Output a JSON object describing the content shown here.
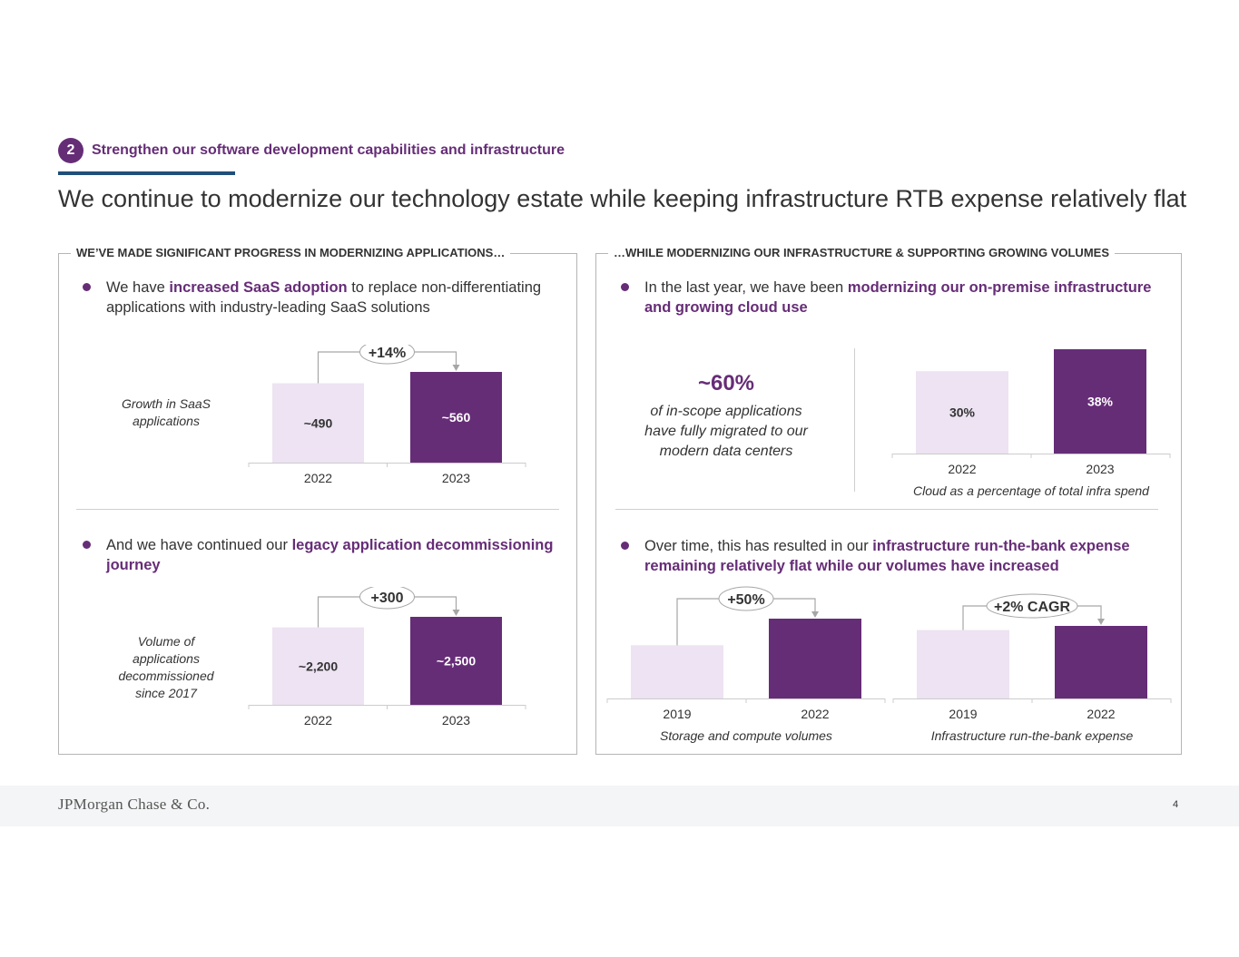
{
  "header": {
    "section_number": "2",
    "section_label": "Strengthen our software development capabilities and infrastructure",
    "title": "We continue to modernize our technology estate while keeping infrastructure RTB expense relatively flat"
  },
  "left_panel": {
    "heading": "WE’VE MADE SIGNIFICANT PROGRESS IN MODERNIZING APPLICATIONS…",
    "bullet1": {
      "pre": "We have ",
      "highlight": "increased SaaS adoption",
      "post": " to replace non-differentiating applications with industry-leading SaaS solutions"
    },
    "bullet2": {
      "pre": "And we have continued our ",
      "highlight": "legacy application decommissioning journey",
      "post": ""
    }
  },
  "right_panel": {
    "heading": "…WHILE MODERNIZING OUR INFRASTRUCTURE & SUPPORTING GROWING VOLUMES",
    "bullet1": {
      "pre": "In the last year, we have been ",
      "highlight": "modernizing our on-premise infrastructure and growing cloud use",
      "post": ""
    },
    "stat_value": "~60%",
    "stat_text": "of in-scope applications have fully migrated to our modern data centers",
    "bullet2": {
      "pre": "Over time, this has resulted in our ",
      "highlight": "infrastructure run-the-bank expense remaining relatively flat while our volumes have increased",
      "post": ""
    }
  },
  "colors": {
    "light": "#ede3f2",
    "dark": "#662d77",
    "text": "#333333"
  },
  "footer": {
    "logo": "JPMorgan Chase & Co.",
    "page": "4"
  },
  "chart_data": [
    {
      "id": "saas",
      "type": "bar",
      "side_label": "Growth in SaaS applications",
      "categories": [
        "2022",
        "2023"
      ],
      "values": [
        490,
        560
      ],
      "data_labels": [
        "~490",
        "~560"
      ],
      "change_label": "+14%",
      "ylim": [
        0,
        650
      ],
      "caption": ""
    },
    {
      "id": "decom",
      "type": "bar",
      "side_label": "Volume of applications decommissioned since 2017",
      "categories": [
        "2022",
        "2023"
      ],
      "values": [
        2200,
        2500
      ],
      "data_labels": [
        "~2,200",
        "~2,500"
      ],
      "change_label": "+300",
      "ylim": [
        0,
        2900
      ],
      "caption": ""
    },
    {
      "id": "cloud",
      "type": "bar",
      "side_label": "",
      "categories": [
        "2022",
        "2023"
      ],
      "values": [
        30,
        38
      ],
      "data_labels": [
        "30%",
        "38%"
      ],
      "change_label": "",
      "ylim": [
        0,
        38
      ],
      "caption": "Cloud as a percentage of total infra spend"
    },
    {
      "id": "storage",
      "type": "bar",
      "side_label": "",
      "categories": [
        "2019",
        "2022"
      ],
      "values": [
        100,
        150
      ],
      "data_labels": [
        "",
        ""
      ],
      "change_label": "+50%",
      "ylim": [
        0,
        175
      ],
      "caption": "Storage and compute volumes"
    },
    {
      "id": "rtb",
      "type": "bar",
      "side_label": "",
      "categories": [
        "2019",
        "2022"
      ],
      "values": [
        100,
        106
      ],
      "data_labels": [
        "",
        ""
      ],
      "change_label": "+2% CAGR",
      "ylim": [
        0,
        140
      ],
      "caption": "Infrastructure run-the-bank expense"
    }
  ]
}
